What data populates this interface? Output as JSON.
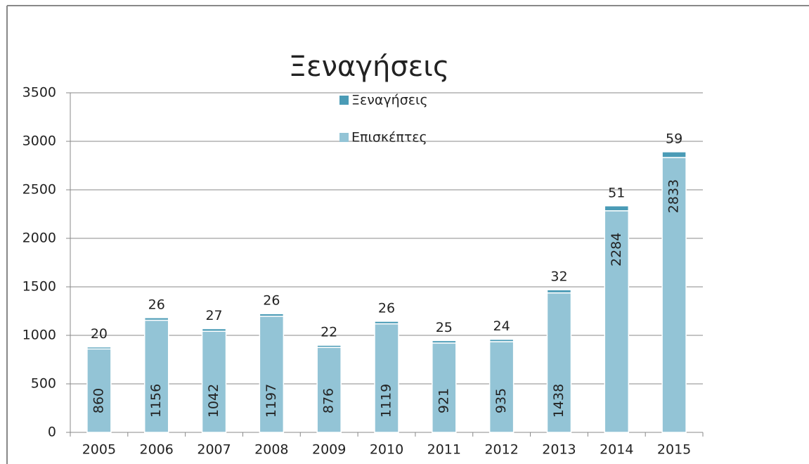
{
  "chart_data": {
    "type": "stacked_bar",
    "title": "Ξεναγήσεις",
    "categories": [
      "2005",
      "2006",
      "2007",
      "2008",
      "2009",
      "2010",
      "2011",
      "2012",
      "2013",
      "2014",
      "2015"
    ],
    "series": [
      {
        "name": "Επισκέπτες",
        "color": "#93c4d6",
        "values": [
          860,
          1156,
          1042,
          1197,
          876,
          1119,
          921,
          935,
          1438,
          2284,
          2833
        ]
      },
      {
        "name": "Ξεναγήσεις",
        "color": "#4a9bb6",
        "values": [
          20,
          26,
          27,
          26,
          22,
          26,
          25,
          24,
          32,
          51,
          59
        ]
      }
    ],
    "ylim": [
      0,
      3500
    ],
    "yticks": [
      0,
      500,
      1000,
      1500,
      2000,
      2500,
      3000,
      3500
    ],
    "grid": true
  }
}
